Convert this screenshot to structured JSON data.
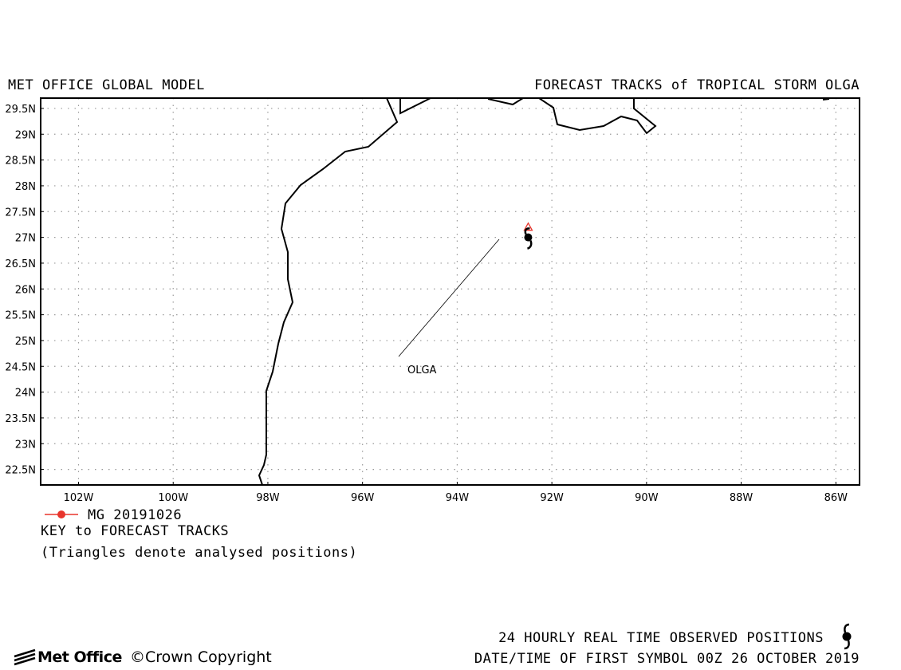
{
  "header": {
    "left_title": "MET OFFICE GLOBAL MODEL",
    "right_title": "FORECAST TRACKS of TROPICAL STORM OLGA"
  },
  "map": {
    "lat_labels": [
      "29.5N",
      "29N",
      "28.5N",
      "28N",
      "27.5N",
      "27N",
      "26.5N",
      "26N",
      "25.5N",
      "25N",
      "24.5N",
      "24N",
      "23.5N",
      "23N",
      "22.5N"
    ],
    "lon_labels": [
      "102W",
      "100W",
      "98W",
      "96W",
      "94W",
      "92W",
      "90W",
      "88W",
      "86W"
    ],
    "storm_label": "OLGA",
    "colors": {
      "track": "#e8352c",
      "coast": "#000000",
      "grid": "#9a9a9a"
    },
    "storm_icon": "hurricane-symbol-icon"
  },
  "chart_data": {
    "type": "scatter",
    "title": "FORECAST TRACKS of TROPICAL STORM OLGA",
    "x_axis": {
      "label": "",
      "unit": "degrees longitude (negative = W)",
      "range": [
        -102.8,
        -85.5
      ],
      "ticks": [
        -102,
        -100,
        -98,
        -96,
        -94,
        -92,
        -90,
        -88,
        -86
      ]
    },
    "y_axis": {
      "label": "",
      "unit": "degrees latitude",
      "range": [
        22.2,
        29.7
      ],
      "ticks": [
        29.5,
        29,
        28.5,
        28,
        27.5,
        27,
        26.5,
        26,
        25.5,
        25,
        24.5,
        24,
        23.5,
        23,
        22.5
      ]
    },
    "grid": true,
    "series": [
      {
        "name": "MG 20191026",
        "type": "analysed",
        "points": [
          {
            "lon": -92.5,
            "lat": 27.2
          }
        ]
      }
    ],
    "observed_positions": [
      {
        "lon": -92.5,
        "lat": 27.0
      }
    ]
  },
  "legend": {
    "entry_label": "MG 20191026",
    "key_title": "KEY to FORECAST TRACKS",
    "note": "(Triangles denote analysed positions)"
  },
  "footer": {
    "brand": "Met Office",
    "copyright": "©Crown Copyright",
    "observed_label": "24 HOURLY REAL TIME OBSERVED POSITIONS",
    "date_label": "DATE/TIME OF FIRST SYMBOL 00Z 26 OCTOBER 2019"
  }
}
